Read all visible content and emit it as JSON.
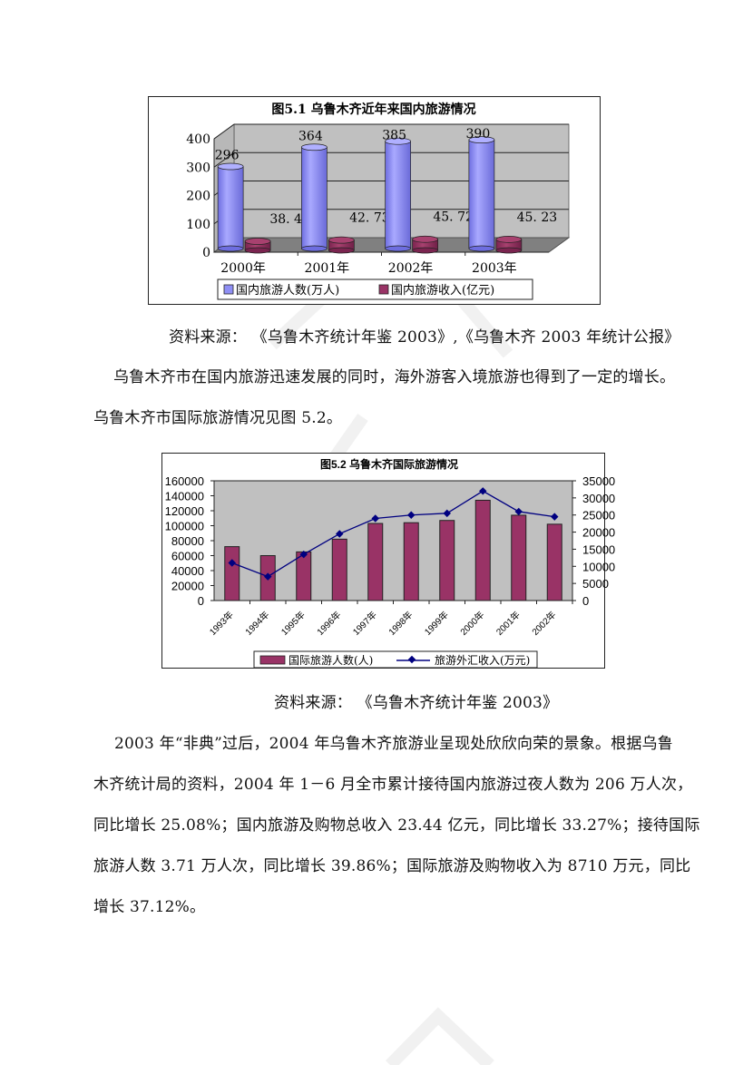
{
  "figure1": {
    "title": "图5.1 乌鲁木齐近年来国内旅游情况",
    "legend": [
      "国内旅游人数(万人)",
      "国内旅游收入(亿元)"
    ],
    "colors": {
      "visitors": "#8f8ff5",
      "revenue": "#993366",
      "wall": "#c0c0c0",
      "floor": "#808080"
    }
  },
  "source1": "资料来源：  《乌鲁木齐统计年鉴 2003》,《乌鲁木齐 2003 年统计公报》",
  "para1_line1": "乌鲁木齐市在国内旅游迅速发展的同时，海外游客入境旅游也得到了一定的增长。",
  "para1_line2": "乌鲁木齐市国际旅游情况见图 5.2。",
  "figure2": {
    "title": "图5.2 乌鲁木齐国际旅游情况",
    "legend": [
      "国际旅游人数(人)",
      "旅游外汇收入(万元)"
    ],
    "colors": {
      "bars": "#993366",
      "line": "#000080",
      "plot_bg": "#c0c0c0"
    }
  },
  "source2": "资料来源：  《乌鲁木齐统计年鉴 2003》",
  "para2": [
    "2003 年“非典”过后，2004 年乌鲁木齐旅游业呈现处欣欣向荣的景象。根据乌鲁",
    "木齐统计局的资料，2004 年 1－6 月全市累计接待国内旅游过夜人数为 206 万人次，",
    "同比增长 25.08%；国内旅游及购物总收入 23.44 亿元，同比增长 33.27%；接待国际",
    "旅游人数 3.71 万人次，同比增长 39.86%；国际旅游及购物收入为 8710 万元，同比",
    "增长 37.12%。"
  ],
  "chart_data": [
    {
      "type": "bar",
      "title": "图5.1 乌鲁木齐近年来国内旅游情况",
      "categories": [
        "2000年",
        "2001年",
        "2002年",
        "2003年"
      ],
      "series": [
        {
          "name": "国内旅游人数(万人)",
          "values": [
            296,
            364,
            385,
            390
          ]
        },
        {
          "name": "国内旅游收入(亿元)",
          "values": [
            38.4,
            42.73,
            45.72,
            45.23
          ]
        }
      ],
      "data_labels": {
        "visitors": [
          "296",
          "364",
          "385",
          "390"
        ],
        "revenue": [
          "38. 4",
          "42. 73",
          "45. 72",
          "45. 23"
        ]
      },
      "xlabel": "",
      "ylabel": "",
      "ylim": [
        0,
        400
      ],
      "yticks": [
        "0",
        "100",
        "200",
        "300",
        "400"
      ],
      "grid": true,
      "style": "3d-cylinder",
      "legend_position": "bottom"
    },
    {
      "type": "bar",
      "title": "图5.2 乌鲁木齐国际旅游情况",
      "categories": [
        "1993年",
        "1994年",
        "1995年",
        "1996年",
        "1997年",
        "1998年",
        "1999年",
        "2000年",
        "2001年",
        "2002年"
      ],
      "series": [
        {
          "name": "国际旅游人数(人)",
          "type": "bar",
          "axis": "left",
          "values": [
            72000,
            60000,
            65000,
            82000,
            103000,
            104000,
            107000,
            134000,
            114000,
            102000
          ]
        },
        {
          "name": "旅游外汇收入(万元)",
          "type": "line",
          "axis": "right",
          "values": [
            11000,
            7000,
            13500,
            19500,
            24000,
            25000,
            25500,
            32000,
            26000,
            24500
          ]
        }
      ],
      "ylim": [
        0,
        160000
      ],
      "yticks": [
        "0",
        "20000",
        "40000",
        "60000",
        "80000",
        "100000",
        "120000",
        "140000",
        "160000"
      ],
      "y2lim": [
        0,
        35000
      ],
      "y2ticks": [
        "0",
        "5000",
        "10000",
        "15000",
        "20000",
        "25000",
        "30000",
        "35000"
      ],
      "grid": false,
      "legend_position": "bottom"
    }
  ]
}
